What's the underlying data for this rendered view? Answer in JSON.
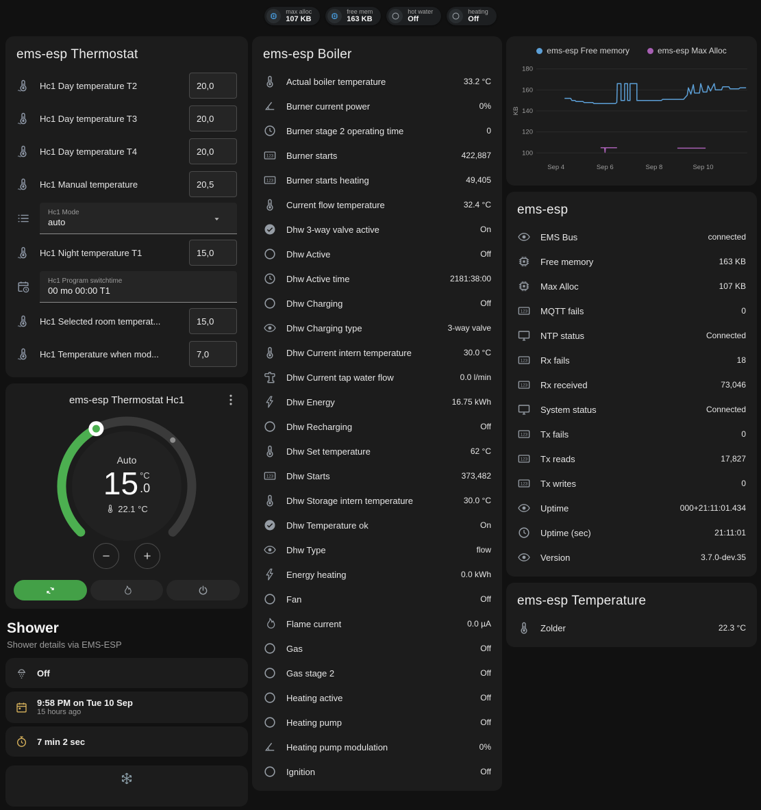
{
  "colors": {
    "background": "#111111",
    "card": "#1c1c1c",
    "accent_green": "#43a047",
    "badge_icon_blue": "#4aa3e8",
    "state_amber": "#d9b35c",
    "free_memory_line": "#5c9fd6",
    "max_alloc_line": "#a75fb3"
  },
  "header_badges": [
    {
      "icon": "chip",
      "icon_color": "#4aa3e8",
      "label": "max alloc",
      "value": "107 KB"
    },
    {
      "icon": "chip",
      "icon_color": "#4aa3e8",
      "label": "free mem",
      "value": "163 KB"
    },
    {
      "icon": "circle",
      "icon_color": "#9aa0a6",
      "label": "hot water",
      "value": "Off"
    },
    {
      "icon": "circle",
      "icon_color": "#9aa0a6",
      "label": "heating",
      "value": "Off"
    }
  ],
  "thermostat_card": {
    "title": "ems-esp Thermostat",
    "rows": [
      {
        "kind": "number",
        "icon": "thermometer-water",
        "name": "Hc1 Day temperature T2",
        "value": "20,0"
      },
      {
        "kind": "number",
        "icon": "thermometer-water",
        "name": "Hc1 Day temperature T3",
        "value": "20,0"
      },
      {
        "kind": "number",
        "icon": "thermometer-water",
        "name": "Hc1 Day temperature T4",
        "value": "20,0"
      },
      {
        "kind": "number",
        "icon": "thermometer-water",
        "name": "Hc1 Manual temperature",
        "value": "20,5"
      },
      {
        "kind": "select",
        "icon": "list",
        "label": "Hc1 Mode",
        "value": "auto"
      },
      {
        "kind": "number",
        "icon": "thermometer-water",
        "name": "Hc1 Night temperature T1",
        "value": "15,0"
      },
      {
        "kind": "text",
        "icon": "calendar-clock",
        "label": "Hc1 Program switchtime",
        "value": "00 mo 00:00 T1"
      },
      {
        "kind": "number",
        "icon": "thermometer-water",
        "name": "Hc1 Selected room temperat...",
        "value": "15,0"
      },
      {
        "kind": "number",
        "icon": "thermometer-water",
        "name": "Hc1 Temperature when mod...",
        "value": "7,0"
      }
    ]
  },
  "hc1_card": {
    "title": "ems-esp Thermostat Hc1",
    "hvac_mode_label": "Auto",
    "target_temp_integer": "15",
    "target_temp_decimal": ".0",
    "unit": "°C",
    "current_temp": "22.1 °C",
    "modes": [
      {
        "name": "auto",
        "icon": "autorenew",
        "active": true
      },
      {
        "name": "heat",
        "icon": "fire",
        "active": false
      },
      {
        "name": "off",
        "icon": "power",
        "active": false
      }
    ]
  },
  "shower_section": {
    "title": "Shower",
    "subtitle": "Shower details via EMS-ESP",
    "cards": [
      {
        "icon": "shower",
        "icon_color": "#9aa0a6",
        "primary": "Off",
        "secondary": ""
      },
      {
        "icon": "calendar",
        "icon_color": "#d9b35c",
        "primary": "9:58 PM on Tue 10 Sep",
        "secondary": "15 hours ago"
      },
      {
        "icon": "timer",
        "icon_color": "#d9b35c",
        "primary": "7 min 2 sec",
        "secondary": ""
      },
      {
        "icon": "snowflake",
        "icon_color": "#90a4ae",
        "primary": "",
        "secondary": ""
      }
    ]
  },
  "boiler_card": {
    "title": "ems-esp Boiler",
    "rows": [
      {
        "icon": "thermometer",
        "name": "Actual boiler temperature",
        "value": "33.2 °C"
      },
      {
        "icon": "angle",
        "name": "Burner current power",
        "value": "0%"
      },
      {
        "icon": "clock",
        "name": "Burner stage 2 operating time",
        "value": "0"
      },
      {
        "icon": "counter",
        "name": "Burner starts",
        "value": "422,887"
      },
      {
        "icon": "counter",
        "name": "Burner starts heating",
        "value": "49,405"
      },
      {
        "icon": "thermometer",
        "name": "Current flow temperature",
        "value": "32.4 °C"
      },
      {
        "icon": "check-circle",
        "name": "Dhw 3-way valve active",
        "value": "On"
      },
      {
        "icon": "circle",
        "name": "Dhw Active",
        "value": "Off"
      },
      {
        "icon": "clock",
        "name": "Dhw Active time",
        "value": "2181:38:00"
      },
      {
        "icon": "circle",
        "name": "Dhw Charging",
        "value": "Off"
      },
      {
        "icon": "eye",
        "name": "Dhw Charging type",
        "value": "3-way valve"
      },
      {
        "icon": "thermometer",
        "name": "Dhw Current intern temperature",
        "value": "30.0 °C"
      },
      {
        "icon": "pump",
        "name": "Dhw Current tap water flow",
        "value": "0.0 l/min"
      },
      {
        "icon": "flash",
        "name": "Dhw Energy",
        "value": "16.75 kWh"
      },
      {
        "icon": "circle",
        "name": "Dhw Recharging",
        "value": "Off"
      },
      {
        "icon": "thermometer",
        "name": "Dhw Set temperature",
        "value": "62 °C"
      },
      {
        "icon": "counter",
        "name": "Dhw Starts",
        "value": "373,482"
      },
      {
        "icon": "thermometer",
        "name": "Dhw Storage intern temperature",
        "value": "30.0 °C"
      },
      {
        "icon": "check-circle",
        "name": "Dhw Temperature ok",
        "value": "On"
      },
      {
        "icon": "eye",
        "name": "Dhw Type",
        "value": "flow"
      },
      {
        "icon": "flash",
        "name": "Energy heating",
        "value": "0.0 kWh"
      },
      {
        "icon": "circle",
        "name": "Fan",
        "value": "Off"
      },
      {
        "icon": "fire",
        "name": "Flame current",
        "value": "0.0 µA"
      },
      {
        "icon": "circle",
        "name": "Gas",
        "value": "Off"
      },
      {
        "icon": "circle",
        "name": "Gas stage 2",
        "value": "Off"
      },
      {
        "icon": "circle",
        "name": "Heating active",
        "value": "Off"
      },
      {
        "icon": "circle",
        "name": "Heating pump",
        "value": "Off"
      },
      {
        "icon": "angle",
        "name": "Heating pump modulation",
        "value": "0%"
      },
      {
        "icon": "circle",
        "name": "Ignition",
        "value": "Off"
      }
    ]
  },
  "emsesp_card": {
    "title": "ems-esp",
    "rows": [
      {
        "icon": "eye",
        "name": "EMS Bus",
        "value": "connected"
      },
      {
        "icon": "chip",
        "name": "Free memory",
        "value": "163 KB"
      },
      {
        "icon": "chip",
        "name": "Max Alloc",
        "value": "107 KB"
      },
      {
        "icon": "counter",
        "name": "MQTT fails",
        "value": "0"
      },
      {
        "icon": "monitor",
        "name": "NTP status",
        "value": "Connected"
      },
      {
        "icon": "counter",
        "name": "Rx fails",
        "value": "18"
      },
      {
        "icon": "counter",
        "name": "Rx received",
        "value": "73,046"
      },
      {
        "icon": "monitor",
        "name": "System status",
        "value": "Connected"
      },
      {
        "icon": "counter",
        "name": "Tx fails",
        "value": "0"
      },
      {
        "icon": "counter",
        "name": "Tx reads",
        "value": "17,827"
      },
      {
        "icon": "counter",
        "name": "Tx writes",
        "value": "0"
      },
      {
        "icon": "eye",
        "name": "Uptime",
        "value": "000+21:11:01.434"
      },
      {
        "icon": "clock",
        "name": "Uptime (sec)",
        "value": "21:11:01"
      },
      {
        "icon": "eye",
        "name": "Version",
        "value": "3.7.0-dev.35"
      }
    ]
  },
  "temperature_card": {
    "title": "ems-esp Temperature",
    "rows": [
      {
        "icon": "thermometer",
        "name": "Zolder",
        "value": "22.3 °C"
      }
    ]
  },
  "chart_data": {
    "type": "line",
    "title": "",
    "xlabel": "",
    "ylabel": "KB",
    "ylim": [
      95,
      185
    ],
    "yticks": [
      100,
      120,
      140,
      160,
      180
    ],
    "xlim": [
      -0.8,
      7.8
    ],
    "x_unit": "days since Sep 4",
    "xticks": [
      {
        "pos": 0,
        "label": "Sep 4"
      },
      {
        "pos": 2,
        "label": "Sep 6"
      },
      {
        "pos": 4,
        "label": "Sep 8"
      },
      {
        "pos": 6,
        "label": "Sep 10"
      }
    ],
    "grid": "horizontal",
    "legend_position": "top",
    "series": [
      {
        "name": "ems-esp Free memory",
        "color": "#5c9fd6",
        "unit": "KB",
        "segments": [
          [
            [
              0.35,
              152
            ],
            [
              0.6,
              152
            ],
            [
              0.65,
              150
            ],
            [
              0.78,
              150
            ],
            [
              0.82,
              149
            ],
            [
              1.1,
              149
            ],
            [
              1.15,
              148
            ],
            [
              1.5,
              148
            ],
            [
              1.55,
              147
            ],
            [
              2.42,
              147
            ],
            [
              2.48,
              148
            ],
            [
              2.5,
              166
            ],
            [
              2.65,
              166
            ],
            [
              2.65,
              150
            ],
            [
              2.8,
              150
            ],
            [
              2.8,
              166
            ],
            [
              2.92,
              166
            ],
            [
              2.92,
              150
            ],
            [
              3.02,
              150
            ],
            [
              3.02,
              166
            ],
            [
              3.3,
              166
            ],
            [
              3.3,
              150
            ],
            [
              4.3,
              150
            ],
            [
              4.35,
              151
            ],
            [
              5.2,
              151
            ],
            [
              5.35,
              155
            ],
            [
              5.4,
              162
            ],
            [
              5.5,
              156
            ],
            [
              5.6,
              165
            ],
            [
              5.65,
              157
            ],
            [
              5.85,
              157
            ],
            [
              5.9,
              166
            ],
            [
              6.0,
              158
            ],
            [
              6.15,
              158
            ],
            [
              6.2,
              164
            ],
            [
              6.3,
              159
            ],
            [
              6.45,
              166
            ],
            [
              6.5,
              160
            ],
            [
              6.75,
              160
            ],
            [
              6.8,
              163
            ],
            [
              7.05,
              163
            ],
            [
              7.1,
              161
            ],
            [
              7.45,
              161
            ],
            [
              7.5,
              162
            ],
            [
              7.75,
              162
            ]
          ]
        ]
      },
      {
        "name": "ems-esp Max Alloc",
        "color": "#a75fb3",
        "unit": "KB",
        "segments": [
          [
            [
              1.82,
              105
            ],
            [
              1.98,
              105
            ],
            [
              2.0,
              100.5
            ],
            [
              2.02,
              105
            ],
            [
              2.49,
              105
            ]
          ],
          [
            [
              4.95,
              104.5
            ],
            [
              6.1,
              104.5
            ]
          ]
        ]
      }
    ]
  }
}
